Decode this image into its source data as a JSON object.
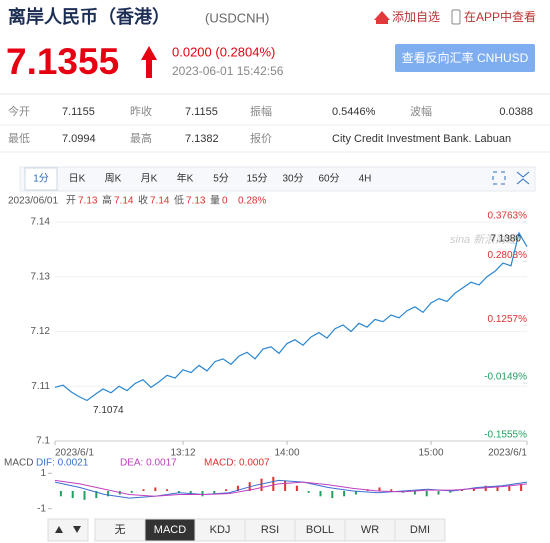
{
  "header": {
    "title": "离岸人民币（香港）",
    "code": "(USDCNH)",
    "add_watch": "添加自选",
    "app": "在APP中查看"
  },
  "quote": {
    "price": "7.1355",
    "change": "0.0200 (0.2804%)",
    "time": "2023-06-01 15:42:56",
    "button": "查看反向汇率 CNHUSD"
  },
  "stats": [
    [
      {
        "label": "今开",
        "value": "7.1155"
      },
      {
        "label": "昨收",
        "value": "7.1155"
      },
      {
        "label": "振幅",
        "value": "0.5446%"
      },
      {
        "label": "波幅",
        "value": "0.0388"
      }
    ],
    [
      {
        "label": "最低",
        "value": "7.0994"
      },
      {
        "label": "最高",
        "value": "7.1382"
      },
      {
        "label": "报价",
        "value": "City Credit Investment Bank. Labuan"
      }
    ]
  ],
  "tabs": [
    "1分",
    "日K",
    "周K",
    "月K",
    "年K",
    "5分",
    "15分",
    "30分",
    "60分",
    "4H"
  ],
  "info": {
    "date": "2023/06/01",
    "items": [
      {
        "label": "开",
        "value": "7.13"
      },
      {
        "label": "高",
        "value": "7.14"
      },
      {
        "label": "收",
        "value": "7.14"
      },
      {
        "label": "低",
        "value": "7.13"
      },
      {
        "label": "量",
        "value": "0"
      }
    ],
    "pct": "0.28%"
  },
  "chart_data": [
    {
      "type": "line",
      "watermark": "sina 新浪财经",
      "xlim": [
        0,
        59
      ],
      "xticks": [
        {
          "value": 0,
          "label": "2023/6/1"
        },
        {
          "value": 16,
          "label": "13:12"
        },
        {
          "value": 29,
          "label": "14:00"
        },
        {
          "value": 47,
          "label": "15:00"
        },
        {
          "value": 59,
          "label": "2023/6/1"
        }
      ],
      "ylim": [
        7.1,
        7.14
      ],
      "yticks": [
        7.14,
        7.13,
        7.12,
        7.11,
        7.1
      ],
      "y2lim": [
        -0.1555,
        0.3763
      ],
      "y2ticks": [
        {
          "value": 0.3763,
          "label": "0.3763%"
        },
        {
          "value": 0.2803,
          "label": "0.2803%"
        },
        {
          "value": 0.1257,
          "label": "0.1257%"
        },
        {
          "value": -0.0149,
          "label": "-0.0149%"
        },
        {
          "value": -0.1555,
          "label": "-0.1555%"
        }
      ],
      "series": [
        {
          "color": "#2a86d0",
          "values": [
            7.1098,
            7.1102,
            7.109,
            7.1081,
            7.1074,
            7.1085,
            7.1095,
            7.1088,
            7.11,
            7.1092,
            7.1105,
            7.1112,
            7.1098,
            7.1108,
            7.112,
            7.1115,
            7.113,
            7.1125,
            7.1138,
            7.1128,
            7.1145,
            7.115,
            7.114,
            7.1155,
            7.1162,
            7.115,
            7.1168,
            7.1172,
            7.116,
            7.1178,
            7.1185,
            7.1175,
            7.119,
            7.1198,
            7.1188,
            7.1205,
            7.1212,
            7.12,
            7.1215,
            7.1208,
            7.1222,
            7.1218,
            7.123,
            7.1225,
            7.1238,
            7.1245,
            7.1235,
            7.1252,
            7.126,
            7.1255,
            7.127,
            7.128,
            7.129,
            7.1285,
            7.13,
            7.131,
            7.1325,
            7.132,
            7.138,
            7.1355
          ]
        }
      ],
      "annotations": [
        {
          "x": 58,
          "y": 7.138,
          "label": "7.1380"
        },
        {
          "x": 4,
          "y": 7.1074,
          "label": "7.1074"
        }
      ]
    },
    {
      "type": "macd",
      "title": "MACD",
      "legend": [
        {
          "text": "DIF: 0.0021",
          "color": "#3a6fd0"
        },
        {
          "text": "DEA: 0.0017",
          "color": "#c040c0"
        },
        {
          "text": "MACD: 0.0007",
          "color": "#e03030"
        }
      ],
      "ylim": [
        -1.3,
        1.3
      ],
      "yticks": [
        1,
        -1
      ],
      "histogram": {
        "up_color": "#e03030",
        "down_color": "#20a060",
        "values": [
          -0.3,
          -0.4,
          -0.5,
          -0.4,
          -0.3,
          -0.2,
          -0.1,
          0.1,
          0.2,
          0.1,
          -0.1,
          -0.2,
          -0.3,
          -0.2,
          0.1,
          0.3,
          0.5,
          0.7,
          0.8,
          0.6,
          0.3,
          -0.1,
          -0.3,
          -0.4,
          -0.3,
          -0.2,
          0.1,
          0.2,
          0.1,
          -0.1,
          -0.2,
          -0.3,
          -0.2,
          -0.1,
          0.1,
          0.2,
          0.3,
          0.2,
          0.3,
          0.4
        ]
      },
      "series": [
        {
          "name": "DIF",
          "color": "#3a6fd0",
          "values": [
            0.5,
            0.2,
            -0.2,
            -0.4,
            -0.3,
            -0.1,
            -0.2,
            -0.1,
            0.3,
            0.6,
            0.5,
            0.2,
            0.0,
            -0.1,
            0.0,
            0.1,
            0.0,
            0.2,
            0.3,
            0.5
          ]
        },
        {
          "name": "DEA",
          "color": "#c040c0",
          "values": [
            0.6,
            0.4,
            0.1,
            -0.2,
            -0.3,
            -0.2,
            -0.2,
            -0.15,
            0.1,
            0.4,
            0.5,
            0.35,
            0.15,
            0.0,
            -0.05,
            0.05,
            0.05,
            0.15,
            0.25,
            0.4
          ]
        }
      ]
    }
  ],
  "indicator_tabs": [
    "无",
    "MACD",
    "KDJ",
    "RSI",
    "BOLL",
    "WR",
    "DMI"
  ]
}
